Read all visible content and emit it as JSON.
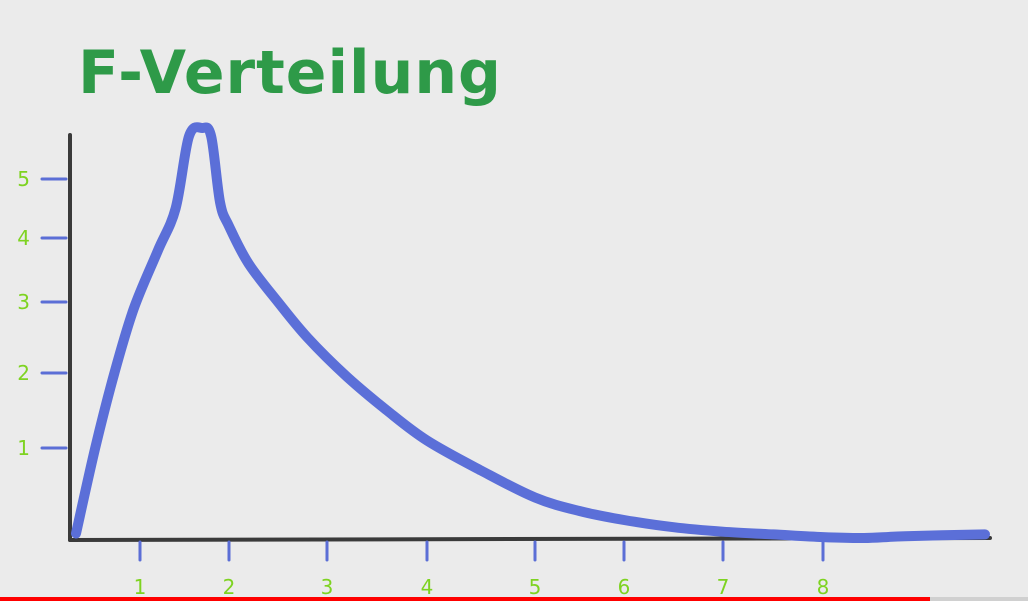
{
  "chart_data": {
    "type": "line",
    "title": "F-Verteilung",
    "xlabel": "",
    "ylabel": "",
    "x_ticks": [
      "1",
      "2",
      "3",
      "4",
      "5",
      "6",
      "7",
      "8"
    ],
    "x_tick_values": [
      1,
      2,
      3,
      4,
      5,
      6,
      7,
      8
    ],
    "y_ticks": [
      "1",
      "2",
      "3",
      "4",
      "5"
    ],
    "y_tick_values": [
      1,
      2,
      3,
      4,
      5
    ],
    "grid": false,
    "colors": {
      "title": "#2e9a48",
      "ticks_text": "#7ed321",
      "tick_marks": "#5b6ed6",
      "curve": "#5b6fd8",
      "axes": "#3a3a3a"
    },
    "series": [
      {
        "x": [
          0.0,
          0.3,
          0.6,
          0.9,
          1.2,
          1.4,
          1.55,
          1.7,
          1.8,
          1.9,
          2.0,
          2.2,
          2.5,
          2.8,
          3.2,
          3.6,
          4.0,
          4.5,
          5.0,
          5.5,
          6.0,
          6.5,
          7.0,
          7.5,
          8.0,
          8.5,
          9.0,
          9.5
        ],
        "y": [
          0.05,
          1.0,
          2.0,
          2.9,
          3.8,
          4.5,
          5.5,
          5.6,
          5.5,
          4.6,
          4.2,
          3.6,
          3.0,
          2.5,
          1.95,
          1.5,
          1.1,
          0.75,
          0.45,
          0.3,
          0.2,
          0.12,
          0.07,
          0.04,
          0.01,
          0.0,
          0.02,
          0.04
        ]
      }
    ]
  },
  "video": {
    "progress_fraction": 0.905
  }
}
